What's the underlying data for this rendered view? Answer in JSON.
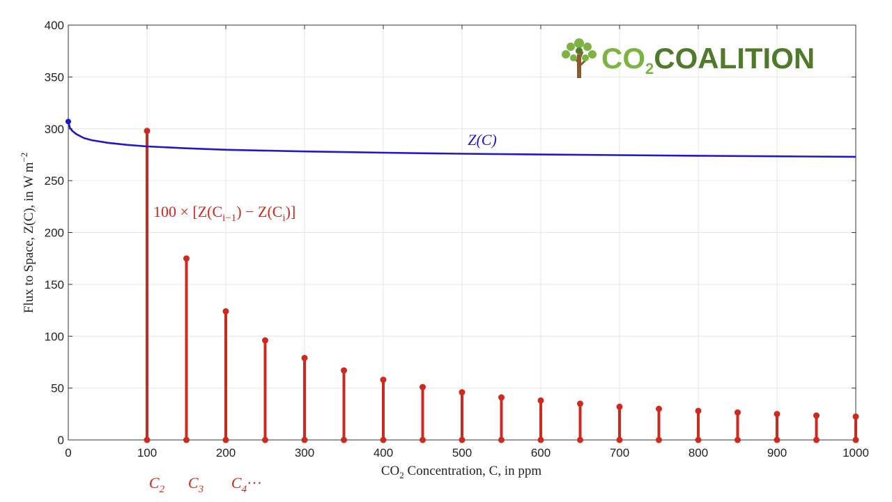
{
  "chart_data": {
    "type": "line",
    "x_axis": {
      "label_prefix": "CO",
      "label_sub": "2",
      "label_suffix": " Concentration, C, in ppm",
      "min": 0,
      "max": 1000,
      "ticks": [
        0,
        100,
        200,
        300,
        400,
        500,
        600,
        700,
        800,
        900,
        1000
      ]
    },
    "y_axis": {
      "label_prefix": "Flux to Space, Z(C), in W m",
      "label_sup": "−2",
      "min": 0,
      "max": 400,
      "ticks": [
        0,
        50,
        100,
        150,
        200,
        250,
        300,
        350,
        400
      ]
    },
    "grid": true,
    "series": [
      {
        "name": "Z(C)",
        "color": "#1f17c9",
        "kind": "line",
        "x": [
          0,
          2,
          5,
          10,
          20,
          30,
          50,
          75,
          100,
          150,
          200,
          300,
          400,
          500,
          600,
          700,
          800,
          900,
          1000
        ],
        "y": [
          307,
          301,
          298,
          295,
          291,
          289,
          286.5,
          284.5,
          283,
          281.2,
          279.8,
          278.2,
          277,
          276,
          275.2,
          274.6,
          274,
          273.5,
          273
        ]
      },
      {
        "name": "100 × [Z(Cᵢ₋₁) − Z(Cᵢ)]",
        "color": "#cc2a1e",
        "kind": "stem",
        "x": [
          100,
          150,
          200,
          250,
          300,
          350,
          400,
          450,
          500,
          550,
          600,
          650,
          700,
          750,
          800,
          850,
          900,
          950,
          1000
        ],
        "y": [
          298,
          175,
          124,
          96,
          79,
          67,
          58,
          51,
          46,
          41,
          38,
          35,
          32,
          30,
          28,
          26.5,
          25,
          23.5,
          22.5
        ]
      }
    ],
    "annotations": {
      "curve_label_text": "Z(C)",
      "stem_label_prefix": "100 × [Z(C",
      "stem_label_sub1": "i−1",
      "stem_label_mid": ") − Z(C",
      "stem_label_sub2": "i",
      "stem_label_suffix": ")]",
      "below_axis": [
        {
          "base": "C",
          "sub": "2",
          "tail": ""
        },
        {
          "base": "C",
          "sub": "3",
          "tail": ""
        },
        {
          "base": "C",
          "sub": "4",
          "tail": "···"
        }
      ]
    }
  },
  "logo": {
    "part1": "CO",
    "sub": "2",
    "part2": "COALITION",
    "color_light": "#7cb342",
    "color_dark": "#4e7a2a",
    "trunk_color": "#8b5a2b",
    "icon": "tree-icon"
  }
}
